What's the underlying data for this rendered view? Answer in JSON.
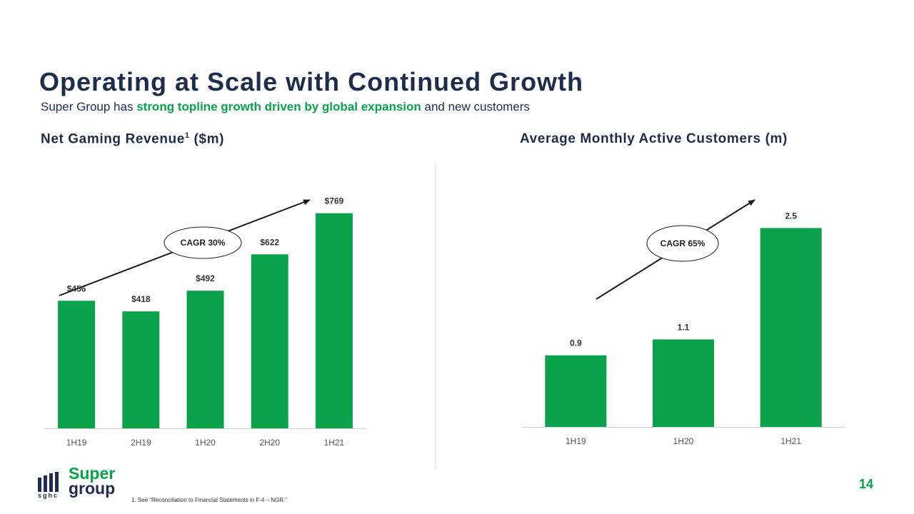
{
  "slide": {
    "title": "Operating at Scale with Continued Growth",
    "subtitle_pre": "Super Group has ",
    "subtitle_highlight": "strong topline growth driven by global expansion",
    "subtitle_post": " and new customers",
    "page_number": "14",
    "footnote": "1. See “Reconciliation to Financial Statements in F-4 – NGR.”",
    "logo": {
      "mark_text": "sghc",
      "word1": "Super",
      "word2": "group"
    }
  },
  "colors": {
    "bar": "#0aa24a",
    "title": "#1f2d4d",
    "highlight": "#0aa24a"
  },
  "chart_data": [
    {
      "type": "bar",
      "title": "Net Gaming Revenue",
      "title_sup": "1",
      "title_unit": " ($m)",
      "categories": [
        "1H19",
        "2H19",
        "1H20",
        "2H20",
        "1H21"
      ],
      "values": [
        456,
        418,
        492,
        622,
        769
      ],
      "value_labels": [
        "$456",
        "$418",
        "$492",
        "$622",
        "$769"
      ],
      "annotation": "CAGR 30%",
      "ylim": [
        0,
        860
      ]
    },
    {
      "type": "bar",
      "title": "Average Monthly Active Customers (m)",
      "categories": [
        "1H19",
        "1H20",
        "1H21"
      ],
      "values": [
        0.9,
        1.1,
        2.5
      ],
      "value_labels": [
        "0.9",
        "1.1",
        "2.5"
      ],
      "annotation": "CAGR 65%",
      "ylim": [
        0,
        2.8
      ]
    }
  ]
}
